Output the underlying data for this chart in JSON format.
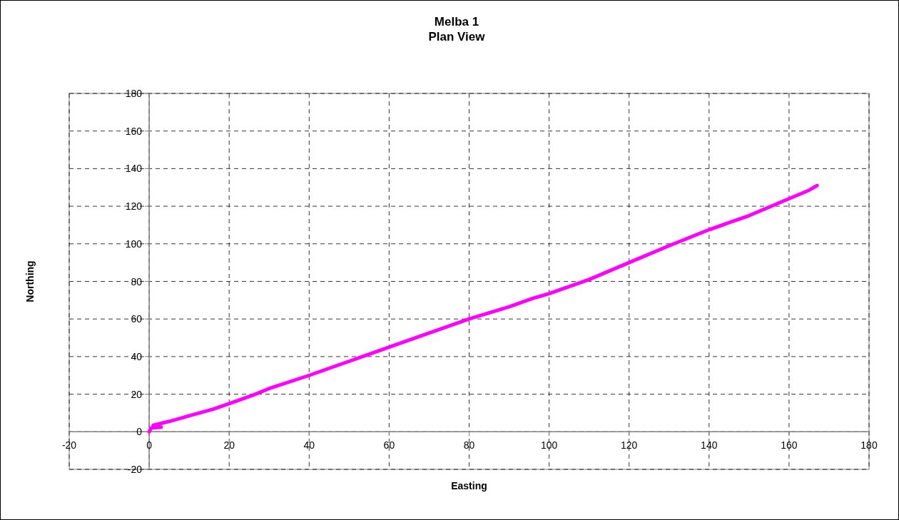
{
  "chart_data": {
    "type": "line",
    "title": "Melba 1\nPlan View",
    "xlabel": "Easting",
    "ylabel": "Northing",
    "x": [
      0,
      0.5,
      3,
      1,
      5,
      10,
      16,
      20,
      26,
      30,
      40,
      50,
      60,
      70,
      80,
      90,
      96,
      100,
      110,
      120,
      130,
      140,
      150,
      160,
      165,
      167
    ],
    "series": [
      {
        "color": "#ff00ff",
        "values": [
          0,
          2,
          2.5,
          3.5,
          5.5,
          8.5,
          12,
          15,
          19.5,
          23,
          30,
          37.5,
          45,
          52.5,
          60,
          66.5,
          71,
          73.5,
          81,
          90,
          99,
          107.5,
          115,
          124,
          128.5,
          131
        ]
      }
    ],
    "xlim": [
      -20,
      180
    ],
    "xticks": [
      -20,
      0,
      20,
      40,
      60,
      80,
      100,
      120,
      140,
      160,
      180
    ],
    "ylim": [
      -20,
      180
    ],
    "yticks": [
      -20,
      0,
      20,
      40,
      60,
      80,
      100,
      120,
      140,
      160,
      180
    ],
    "grid": true,
    "marker": "none",
    "line_style": "solid"
  }
}
